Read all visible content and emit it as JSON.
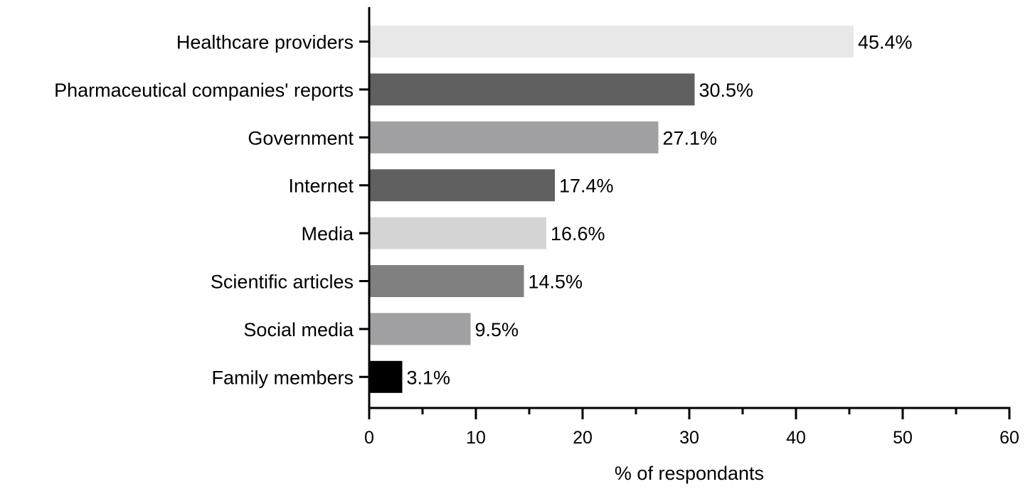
{
  "chart_data": {
    "type": "bar",
    "orientation": "horizontal",
    "categories": [
      "Healthcare providers",
      "Pharmaceutical companies' reports",
      "Government",
      "Internet",
      "Media",
      "Scientific articles",
      "Social media",
      "Family members"
    ],
    "values": [
      45.4,
      30.5,
      27.1,
      17.4,
      16.6,
      14.5,
      9.5,
      3.1
    ],
    "value_labels": [
      "45.4%",
      "30.5%",
      "27.1%",
      "17.4%",
      "16.6%",
      "14.5%",
      "9.5%",
      "3.1%"
    ],
    "bar_colors": [
      "#e8e8e8",
      "#606060",
      "#a0a0a3",
      "#606060",
      "#d4d4d4",
      "#808080",
      "#a0a0a3",
      "#000000"
    ],
    "title": "",
    "xlabel": "% of respondants",
    "ylabel": "",
    "xlim": [
      0,
      60
    ],
    "xticks": [
      0,
      10,
      20,
      30,
      40,
      50,
      60
    ],
    "xtick_labels": [
      "0",
      "10",
      "20",
      "30",
      "40",
      "50",
      "60"
    ],
    "minor_ticks": [
      5,
      15,
      25,
      35,
      45,
      55
    ],
    "grid": false,
    "legend": "none"
  }
}
